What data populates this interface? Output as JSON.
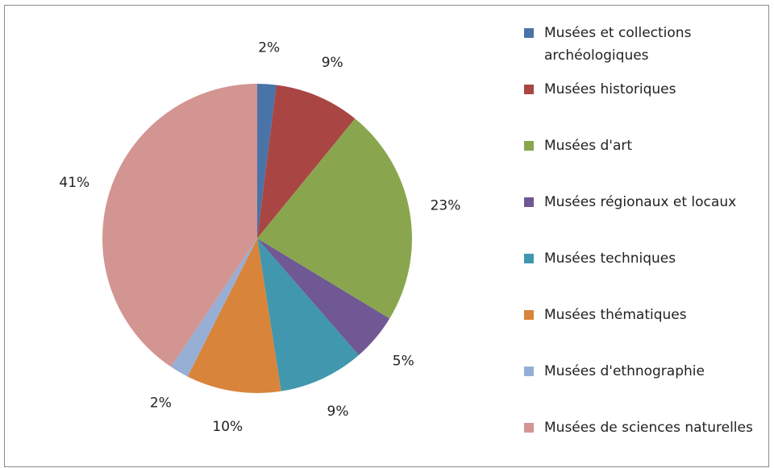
{
  "chart_data": {
    "type": "pie",
    "title": "",
    "legend_position": "right",
    "slices": [
      {
        "name": "Musées et collections archéologiques",
        "value": 2,
        "label": "2%",
        "color": "#4a73a8"
      },
      {
        "name": "Musées historiques",
        "value": 9,
        "label": "9%",
        "color": "#a94644"
      },
      {
        "name": "Musées d'art",
        "value": 23,
        "label": "23%",
        "color": "#89a64e"
      },
      {
        "name": "Musées régionaux et locaux",
        "value": 5,
        "label": "5%",
        "color": "#6f5893"
      },
      {
        "name": "Musées techniques",
        "value": 9,
        "label": "9%",
        "color": "#4197ad"
      },
      {
        "name": "Musées thématiques",
        "value": 10,
        "label": "10%",
        "color": "#d9843b"
      },
      {
        "name": "Musées d'ethnographie",
        "value": 2,
        "label": "2%",
        "color": "#97aed5"
      },
      {
        "name": "Musées de sciences naturelles",
        "value": 41,
        "label": "41%",
        "color": "#d39592"
      }
    ]
  }
}
